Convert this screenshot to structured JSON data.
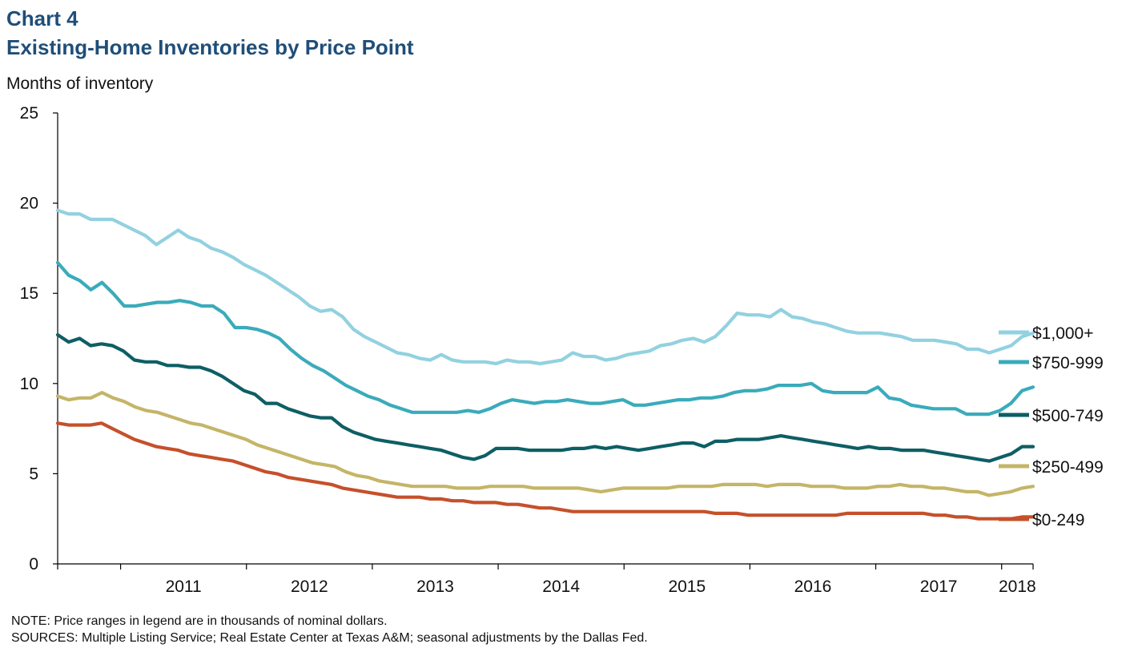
{
  "header": {
    "chart_number": "Chart 4",
    "title": "Existing-Home Inventories by Price Point"
  },
  "footer": {
    "note": "NOTE: Price ranges in legend are in thousands of nominal dollars.",
    "sources": "SOURCES: Multiple Listing Service; Real Estate Center at Texas A&M; seasonal adjustments by the Dallas Fed."
  },
  "colors": {
    "s1000": "#92d1e0",
    "s750": "#3aabbb",
    "s500": "#0e5e65",
    "s250": "#c4b568",
    "s0": "#c5502b",
    "axis": "#000000"
  },
  "chart_data": {
    "type": "line",
    "title": "Existing-Home Inventories by Price Point",
    "ylabel": "Months of inventory",
    "xlabel": "",
    "ylim": [
      0,
      25
    ],
    "yticks": [
      0,
      5,
      10,
      15,
      20,
      25
    ],
    "x_start": "2010-07",
    "x_end": "2018-04",
    "x_tick_labels": [
      "2011",
      "2012",
      "2013",
      "2014",
      "2015",
      "2016",
      "2017",
      "2018"
    ],
    "grid": false,
    "legend": "right, labels at line ends",
    "series": [
      {
        "name": "$1,000+",
        "color_key": "s1000",
        "values": [
          19.6,
          19.4,
          19.4,
          19.1,
          19.1,
          19.1,
          18.8,
          18.5,
          18.2,
          17.7,
          18.1,
          18.5,
          18.1,
          17.9,
          17.5,
          17.3,
          17.0,
          16.6,
          16.3,
          16.0,
          15.6,
          15.2,
          14.8,
          14.3,
          14.0,
          14.1,
          13.7,
          13.0,
          12.6,
          12.3,
          12.0,
          11.7,
          11.6,
          11.4,
          11.3,
          11.6,
          11.3,
          11.2,
          11.2,
          11.2,
          11.1,
          11.3,
          11.2,
          11.2,
          11.1,
          11.2,
          11.3,
          11.7,
          11.5,
          11.5,
          11.3,
          11.4,
          11.6,
          11.7,
          11.8,
          12.1,
          12.2,
          12.4,
          12.5,
          12.3,
          12.6,
          13.2,
          13.9,
          13.8,
          13.8,
          13.7,
          14.1,
          13.7,
          13.6,
          13.4,
          13.3,
          13.1,
          12.9,
          12.8,
          12.8,
          12.8,
          12.7,
          12.6,
          12.4,
          12.4,
          12.4,
          12.3,
          12.2,
          11.9,
          11.9,
          11.7,
          11.9,
          12.1,
          12.6,
          12.8
        ]
      },
      {
        "name": "$750-999",
        "color_key": "s750",
        "values": [
          16.7,
          16.0,
          15.7,
          15.2,
          15.6,
          15.0,
          14.3,
          14.3,
          14.4,
          14.5,
          14.5,
          14.6,
          14.5,
          14.3,
          14.3,
          13.9,
          13.1,
          13.1,
          13.0,
          12.8,
          12.5,
          11.9,
          11.4,
          11.0,
          10.7,
          10.3,
          9.9,
          9.6,
          9.3,
          9.1,
          8.8,
          8.6,
          8.4,
          8.4,
          8.4,
          8.4,
          8.4,
          8.5,
          8.4,
          8.6,
          8.9,
          9.1,
          9.0,
          8.9,
          9.0,
          9.0,
          9.1,
          9.0,
          8.9,
          8.9,
          9.0,
          9.1,
          8.8,
          8.8,
          8.9,
          9.0,
          9.1,
          9.1,
          9.2,
          9.2,
          9.3,
          9.5,
          9.6,
          9.6,
          9.7,
          9.9,
          9.9,
          9.9,
          10.0,
          9.6,
          9.5,
          9.5,
          9.5,
          9.5,
          9.8,
          9.2,
          9.1,
          8.8,
          8.7,
          8.6,
          8.6,
          8.6,
          8.3,
          8.3,
          8.3,
          8.5,
          8.9,
          9.6,
          9.8
        ]
      },
      {
        "name": "$500-749",
        "color_key": "s500",
        "values": [
          12.7,
          12.3,
          12.5,
          12.1,
          12.2,
          12.1,
          11.8,
          11.3,
          11.2,
          11.2,
          11.0,
          11.0,
          10.9,
          10.9,
          10.7,
          10.4,
          10.0,
          9.6,
          9.4,
          8.9,
          8.9,
          8.6,
          8.4,
          8.2,
          8.1,
          8.1,
          7.6,
          7.3,
          7.1,
          6.9,
          6.8,
          6.7,
          6.6,
          6.5,
          6.4,
          6.3,
          6.1,
          5.9,
          5.8,
          6.0,
          6.4,
          6.4,
          6.4,
          6.3,
          6.3,
          6.3,
          6.3,
          6.4,
          6.4,
          6.5,
          6.4,
          6.5,
          6.4,
          6.3,
          6.4,
          6.5,
          6.6,
          6.7,
          6.7,
          6.5,
          6.8,
          6.8,
          6.9,
          6.9,
          6.9,
          7.0,
          7.1,
          7.0,
          6.9,
          6.8,
          6.7,
          6.6,
          6.5,
          6.4,
          6.5,
          6.4,
          6.4,
          6.3,
          6.3,
          6.3,
          6.2,
          6.1,
          6.0,
          5.9,
          5.8,
          5.7,
          5.9,
          6.1,
          6.5,
          6.5
        ]
      },
      {
        "name": "$250-499",
        "color_key": "s250",
        "values": [
          9.3,
          9.1,
          9.2,
          9.2,
          9.5,
          9.2,
          9.0,
          8.7,
          8.5,
          8.4,
          8.2,
          8.0,
          7.8,
          7.7,
          7.5,
          7.3,
          7.1,
          6.9,
          6.6,
          6.4,
          6.2,
          6.0,
          5.8,
          5.6,
          5.5,
          5.4,
          5.1,
          4.9,
          4.8,
          4.6,
          4.5,
          4.4,
          4.3,
          4.3,
          4.3,
          4.3,
          4.2,
          4.2,
          4.2,
          4.3,
          4.3,
          4.3,
          4.3,
          4.2,
          4.2,
          4.2,
          4.2,
          4.2,
          4.1,
          4.0,
          4.1,
          4.2,
          4.2,
          4.2,
          4.2,
          4.2,
          4.3,
          4.3,
          4.3,
          4.3,
          4.4,
          4.4,
          4.4,
          4.4,
          4.3,
          4.4,
          4.4,
          4.4,
          4.3,
          4.3,
          4.3,
          4.2,
          4.2,
          4.2,
          4.3,
          4.3,
          4.4,
          4.3,
          4.3,
          4.2,
          4.2,
          4.1,
          4.0,
          4.0,
          3.8,
          3.9,
          4.0,
          4.2,
          4.3
        ]
      },
      {
        "name": "$0-249",
        "color_key": "s0",
        "values": [
          7.8,
          7.7,
          7.7,
          7.7,
          7.8,
          7.5,
          7.2,
          6.9,
          6.7,
          6.5,
          6.4,
          6.3,
          6.1,
          6.0,
          5.9,
          5.8,
          5.7,
          5.5,
          5.3,
          5.1,
          5.0,
          4.8,
          4.7,
          4.6,
          4.5,
          4.4,
          4.2,
          4.1,
          4.0,
          3.9,
          3.8,
          3.7,
          3.7,
          3.7,
          3.6,
          3.6,
          3.5,
          3.5,
          3.4,
          3.4,
          3.4,
          3.3,
          3.3,
          3.2,
          3.1,
          3.1,
          3.0,
          2.9,
          2.9,
          2.9,
          2.9,
          2.9,
          2.9,
          2.9,
          2.9,
          2.9,
          2.9,
          2.9,
          2.9,
          2.9,
          2.8,
          2.8,
          2.8,
          2.7,
          2.7,
          2.7,
          2.7,
          2.7,
          2.7,
          2.7,
          2.7,
          2.7,
          2.8,
          2.8,
          2.8,
          2.8,
          2.8,
          2.8,
          2.8,
          2.8,
          2.7,
          2.7,
          2.6,
          2.6,
          2.5,
          2.5,
          2.5,
          2.5,
          2.6,
          2.6
        ]
      }
    ]
  }
}
